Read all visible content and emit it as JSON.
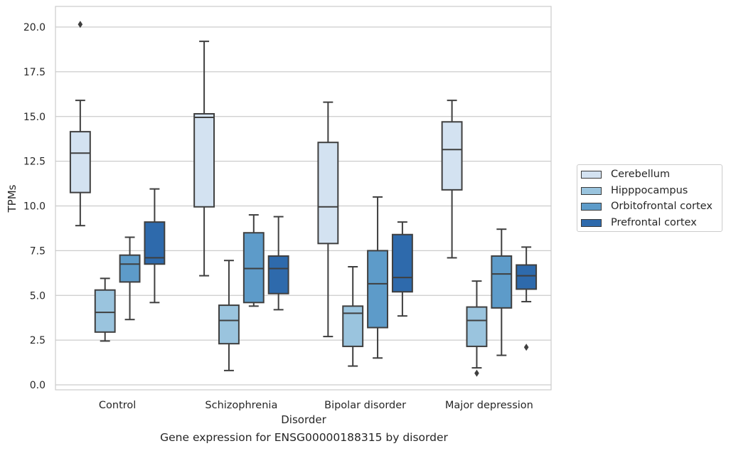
{
  "chart_data": {
    "type": "box",
    "title": "",
    "caption": "Gene expression for ENSG00000188315 by disorder",
    "xlabel": "Disorder",
    "ylabel": "TPMs",
    "ylim": [
      -0.3,
      21.2
    ],
    "yticks": [
      0.0,
      2.5,
      5.0,
      7.5,
      10.0,
      12.5,
      15.0,
      17.5,
      20.0
    ],
    "ytick_labels": [
      "0.0",
      "2.5",
      "5.0",
      "7.5",
      "10.0",
      "12.5",
      "15.0",
      "17.5",
      "20.0"
    ],
    "grid": "horizontal",
    "legend_position": "outside-right",
    "categories": [
      "Control",
      "Schizophrenia",
      "Bipolar disorder",
      "Major depression"
    ],
    "series": [
      {
        "name": "Cerebellum",
        "color": "#d3e2f1",
        "boxes": [
          {
            "whislo": 8.9,
            "q1": 10.75,
            "med": 12.95,
            "q3": 14.15,
            "whishi": 15.9,
            "fliers": [
              20.15
            ]
          },
          {
            "whislo": 6.1,
            "q1": 9.95,
            "med": 14.95,
            "q3": 15.15,
            "whishi": 19.2,
            "fliers": []
          },
          {
            "whislo": 2.7,
            "q1": 7.9,
            "med": 9.95,
            "q3": 13.55,
            "whishi": 15.8,
            "fliers": []
          },
          {
            "whislo": 7.1,
            "q1": 10.9,
            "med": 13.15,
            "q3": 14.7,
            "whishi": 15.9,
            "fliers": []
          }
        ]
      },
      {
        "name": "Hipppocampus",
        "color": "#9ac4de",
        "boxes": [
          {
            "whislo": 2.45,
            "q1": 2.95,
            "med": 4.05,
            "q3": 5.3,
            "whishi": 5.95,
            "fliers": []
          },
          {
            "whislo": 0.8,
            "q1": 2.3,
            "med": 3.6,
            "q3": 4.45,
            "whishi": 6.95,
            "fliers": []
          },
          {
            "whislo": 1.05,
            "q1": 2.15,
            "med": 4.0,
            "q3": 4.4,
            "whishi": 6.6,
            "fliers": []
          },
          {
            "whislo": 0.95,
            "q1": 2.15,
            "med": 3.6,
            "q3": 4.35,
            "whishi": 5.8,
            "fliers": [
              0.65
            ]
          }
        ]
      },
      {
        "name": "Orbitofrontal cortex",
        "color": "#5d9bc9",
        "boxes": [
          {
            "whislo": 3.65,
            "q1": 5.75,
            "med": 6.75,
            "q3": 7.25,
            "whishi": 8.25,
            "fliers": []
          },
          {
            "whislo": 4.4,
            "q1": 4.6,
            "med": 6.5,
            "q3": 8.5,
            "whishi": 9.5,
            "fliers": []
          },
          {
            "whislo": 1.5,
            "q1": 3.2,
            "med": 5.65,
            "q3": 7.5,
            "whishi": 10.5,
            "fliers": []
          },
          {
            "whislo": 1.65,
            "q1": 4.3,
            "med": 6.2,
            "q3": 7.2,
            "whishi": 8.7,
            "fliers": []
          }
        ]
      },
      {
        "name": "Prefrontal cortex",
        "color": "#2e6aac",
        "boxes": [
          {
            "whislo": 4.6,
            "q1": 6.75,
            "med": 7.1,
            "q3": 9.1,
            "whishi": 10.95,
            "fliers": []
          },
          {
            "whislo": 4.2,
            "q1": 5.1,
            "med": 6.5,
            "q3": 7.2,
            "whishi": 9.4,
            "fliers": []
          },
          {
            "whislo": 3.85,
            "q1": 5.2,
            "med": 6.0,
            "q3": 8.4,
            "whishi": 9.1,
            "fliers": []
          },
          {
            "whislo": 4.65,
            "q1": 5.35,
            "med": 6.1,
            "q3": 6.7,
            "whishi": 7.7,
            "fliers": [
              2.1
            ]
          }
        ]
      }
    ]
  }
}
